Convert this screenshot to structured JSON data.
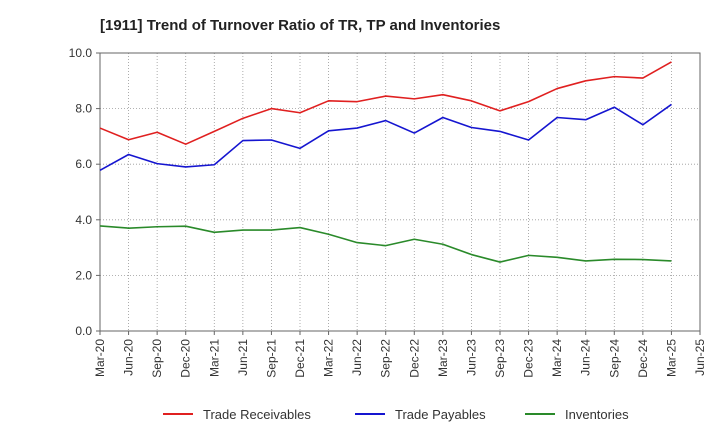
{
  "chart_data": {
    "type": "line",
    "title": "[1911]  Trend of Turnover Ratio of TR, TP and Inventories",
    "xlabel": "",
    "ylabel": "",
    "ylim": [
      0,
      10
    ],
    "yticks": [
      "0.0",
      "2.0",
      "4.0",
      "6.0",
      "8.0",
      "10.0"
    ],
    "x_tick_labels": [
      "Mar-20",
      "Jun-20",
      "Sep-20",
      "Dec-20",
      "Mar-21",
      "Jun-21",
      "Sep-21",
      "Dec-21",
      "Mar-22",
      "Jun-22",
      "Sep-22",
      "Dec-22",
      "Mar-23",
      "Jun-23",
      "Sep-23",
      "Dec-23",
      "Mar-24",
      "Jun-24",
      "Sep-24",
      "Dec-24",
      "Mar-25",
      "Jun-25"
    ],
    "categories": [
      "Mar-20",
      "Jun-20",
      "Sep-20",
      "Dec-20",
      "Mar-21",
      "Jun-21",
      "Sep-21",
      "Dec-21",
      "Mar-22",
      "Jun-22",
      "Sep-22",
      "Dec-22",
      "Mar-23",
      "Jun-23",
      "Sep-23",
      "Dec-23",
      "Mar-24",
      "Jun-24",
      "Sep-24",
      "Dec-24",
      "Mar-25"
    ],
    "grid": true,
    "legend_position": "bottom",
    "series": [
      {
        "name": "Trade Receivables",
        "color": "#e02020",
        "values": [
          7.3,
          6.88,
          7.15,
          6.72,
          7.18,
          7.65,
          8.0,
          7.85,
          8.28,
          8.25,
          8.45,
          8.35,
          8.5,
          8.28,
          7.92,
          8.25,
          8.72,
          9.0,
          9.15,
          9.1,
          9.68
        ]
      },
      {
        "name": "Trade Payables",
        "color": "#1515d0",
        "values": [
          5.78,
          6.35,
          6.02,
          5.9,
          5.98,
          6.85,
          6.87,
          6.57,
          7.2,
          7.3,
          7.57,
          7.12,
          7.68,
          7.32,
          7.18,
          6.87,
          7.68,
          7.6,
          8.05,
          7.42,
          8.15
        ]
      },
      {
        "name": "Inventories",
        "color": "#2a8a2a",
        "values": [
          3.78,
          3.7,
          3.75,
          3.77,
          3.55,
          3.63,
          3.63,
          3.72,
          3.48,
          3.18,
          3.07,
          3.3,
          3.12,
          2.75,
          2.48,
          2.72,
          2.65,
          2.52,
          2.58,
          2.57,
          2.52
        ]
      }
    ]
  }
}
